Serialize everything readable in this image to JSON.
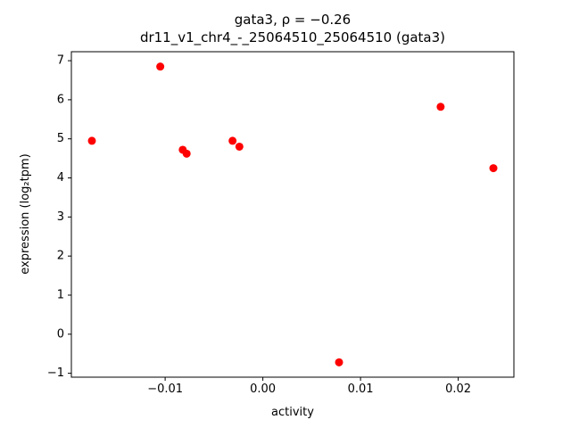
{
  "chart_data": {
    "type": "scatter",
    "title": "gata3, ρ = −0.26",
    "subtitle": "dr11_v1_chr4_-_25064510_25064510 (gata3)",
    "xlabel": "activity",
    "ylabel": "expression (log₂tpm)",
    "marker_color": "#ff0000",
    "legend": "none",
    "grid": false,
    "xlim": [
      -0.0196,
      0.0257
    ],
    "ylim": [
      -1.1,
      7.23
    ],
    "xticks": {
      "values": [
        -0.01,
        0,
        0.01,
        0.02
      ],
      "labels": [
        "−0.01",
        "0.00",
        "0.01",
        "0.02"
      ]
    },
    "yticks": {
      "values": [
        -1,
        0,
        1,
        2,
        3,
        4,
        5,
        6,
        7
      ],
      "labels": [
        "−1",
        "0",
        "1",
        "2",
        "3",
        "4",
        "5",
        "6",
        "7"
      ]
    },
    "points": [
      [
        -0.0175,
        4.95
      ],
      [
        -0.0105,
        6.85
      ],
      [
        -0.0082,
        4.72
      ],
      [
        -0.0078,
        4.62
      ],
      [
        -0.0031,
        4.95
      ],
      [
        -0.0024,
        4.8
      ],
      [
        0.0078,
        -0.72
      ],
      [
        0.0182,
        5.82
      ],
      [
        0.0236,
        4.25
      ]
    ]
  }
}
